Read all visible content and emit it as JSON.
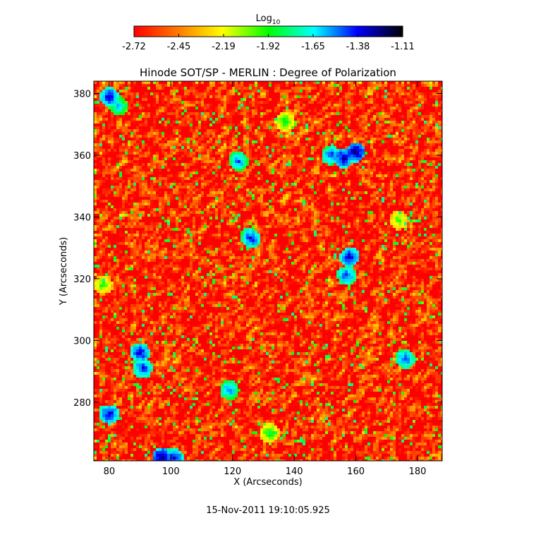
{
  "chart_data": {
    "type": "heatmap",
    "title": "Hinode SOT/SP - MERLIN : Degree of Polarization",
    "xlabel": "X (Arcseconds)",
    "ylabel": "Y (Arcseconds)",
    "xlim": [
      75,
      188
    ],
    "ylim": [
      261,
      384
    ],
    "x_ticks": [
      80,
      100,
      120,
      140,
      160,
      180
    ],
    "y_ticks": [
      280,
      300,
      320,
      340,
      360,
      380
    ],
    "colorbar": {
      "label_base": "Log",
      "label_subscript": "10",
      "range": [
        -2.72,
        -1.11
      ],
      "ticks": [
        "-2.72",
        "-2.45",
        "-2.19",
        "-1.92",
        "-1.65",
        "-1.38",
        "-1.11"
      ],
      "colors": [
        "#ff0000",
        "#ff7f00",
        "#ffff00",
        "#00ff00",
        "#00ffff",
        "#0000ff",
        "#000000"
      ]
    },
    "background_level": -2.65,
    "grid": false,
    "features": [
      {
        "x": 80,
        "y": 379,
        "level": -1.3
      },
      {
        "x": 83,
        "y": 376,
        "level": -1.55
      },
      {
        "x": 122,
        "y": 358,
        "level": -1.45
      },
      {
        "x": 137,
        "y": 371,
        "level": -1.85
      },
      {
        "x": 152,
        "y": 360,
        "level": -1.4
      },
      {
        "x": 156,
        "y": 359,
        "level": -1.25
      },
      {
        "x": 160,
        "y": 361,
        "level": -1.2
      },
      {
        "x": 126,
        "y": 333,
        "level": -1.35
      },
      {
        "x": 158,
        "y": 327,
        "level": -1.3
      },
      {
        "x": 157,
        "y": 321,
        "level": -1.4
      },
      {
        "x": 174,
        "y": 339,
        "level": -1.95
      },
      {
        "x": 78,
        "y": 318,
        "level": -1.9
      },
      {
        "x": 90,
        "y": 296,
        "level": -1.3
      },
      {
        "x": 91,
        "y": 291,
        "level": -1.35
      },
      {
        "x": 119,
        "y": 284,
        "level": -1.45
      },
      {
        "x": 80,
        "y": 276,
        "level": -1.3
      },
      {
        "x": 176,
        "y": 294,
        "level": -1.4
      },
      {
        "x": 97,
        "y": 262,
        "level": -1.2
      },
      {
        "x": 101,
        "y": 262,
        "level": -1.3
      },
      {
        "x": 132,
        "y": 270,
        "level": -1.85
      }
    ]
  },
  "footer": {
    "timestamp": "15-Nov-2011 19:10:05.925"
  }
}
